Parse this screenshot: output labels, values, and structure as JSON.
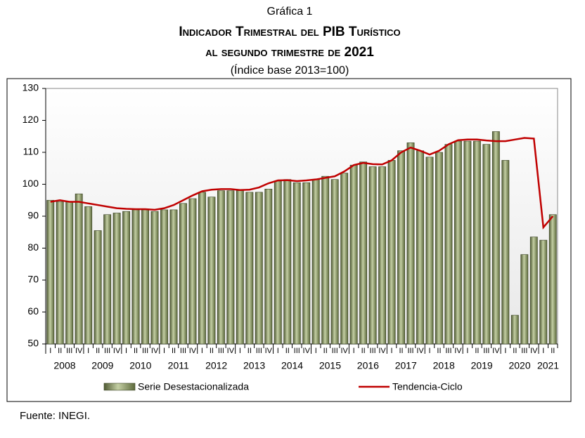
{
  "chart_data": {
    "type": "bar_line",
    "caption": "Gráfica 1",
    "title": "Indicador Trimestral del PIB Turístico",
    "subtitle": "al segundo trimestre de 2021",
    "note": "(Índice base 2013=100)",
    "source": "Fuente: INEGI.",
    "categories": [
      "I",
      "II",
      "III",
      "IV",
      "I",
      "II",
      "III",
      "IV",
      "I",
      "II",
      "III",
      "IV",
      "I",
      "II",
      "III",
      "IV",
      "I",
      "II",
      "III",
      "IV",
      "I",
      "II",
      "III",
      "IV",
      "I",
      "II",
      "III",
      "IV",
      "I",
      "II",
      "III",
      "IV",
      "I",
      "II",
      "III",
      "IV",
      "I",
      "II",
      "III",
      "IV",
      "I",
      "II",
      "III",
      "IV",
      "I",
      "II",
      "III",
      "IV",
      "I",
      "II",
      "III",
      "IV",
      "I",
      "II"
    ],
    "years": [
      "2008",
      "2009",
      "2010",
      "2011",
      "2012",
      "2013",
      "2014",
      "2015",
      "2016",
      "2017",
      "2018",
      "2019",
      "2020",
      "2021"
    ],
    "series": [
      {
        "name": "Serie Desestacionalizada",
        "kind": "bar",
        "color": "#7d8c55",
        "values": [
          95,
          94.5,
          94.5,
          97,
          93,
          85.5,
          90.5,
          91,
          91.5,
          92,
          92,
          91.5,
          92,
          92,
          94,
          95.5,
          97.5,
          96,
          98,
          98,
          98,
          97.5,
          97.5,
          98.5,
          101,
          101.5,
          100.5,
          100.5,
          101.5,
          102.5,
          101.5,
          103.5,
          106,
          107,
          105.5,
          105.5,
          107.5,
          110.5,
          113,
          110.5,
          108.5,
          110,
          112.5,
          113.5,
          113.5,
          113.5,
          112.5,
          116.5,
          107.5,
          59,
          78,
          83.5,
          82.5,
          90.5
        ]
      },
      {
        "name": "Tendencia-Ciclo",
        "kind": "line",
        "color": "#c00000",
        "values": [
          94.5,
          95,
          94.5,
          94.5,
          94,
          93.5,
          93,
          92.5,
          92.3,
          92.2,
          92.2,
          92,
          92.5,
          93.5,
          95,
          96.5,
          97.8,
          98.3,
          98.5,
          98.5,
          98.2,
          98.3,
          99,
          100.3,
          101.2,
          101.3,
          101,
          101.2,
          101.5,
          102,
          102.5,
          104,
          106,
          106.7,
          106.3,
          106.2,
          107.5,
          110,
          111.5,
          110.5,
          109.3,
          110.5,
          112.5,
          113.8,
          114,
          114,
          113.7,
          113.5,
          113.5,
          114,
          114.5,
          114.3,
          86.5,
          90
        ]
      }
    ],
    "ylim": [
      50,
      130
    ],
    "yticks": [
      50,
      60,
      70,
      80,
      90,
      100,
      110,
      120,
      130
    ],
    "grid": false
  }
}
